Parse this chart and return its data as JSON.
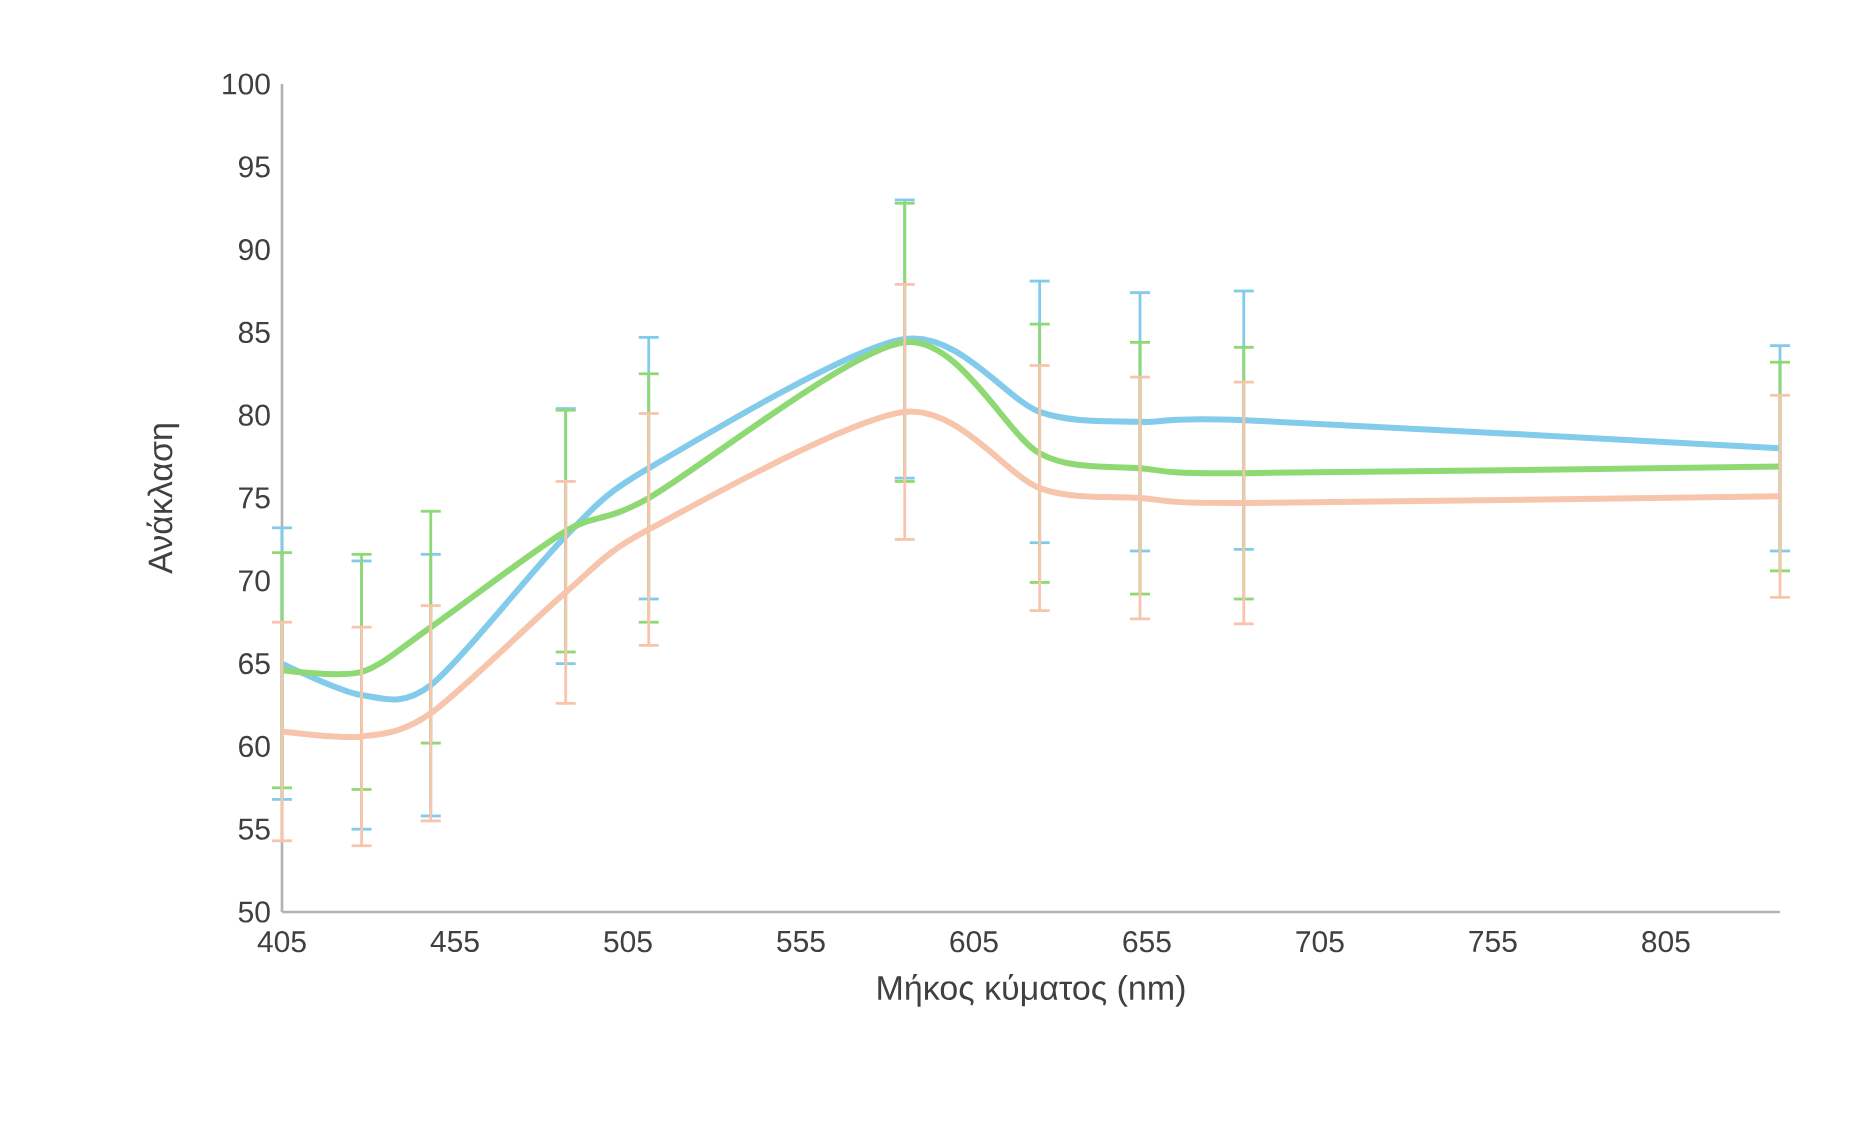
{
  "chart_data": {
    "type": "line",
    "xlabel": "Μήκος κύματος (nm)",
    "ylabel": "Ανάκλαση",
    "x": [
      405,
      428,
      448,
      487,
      511,
      585,
      624,
      653,
      683,
      838
    ],
    "series": [
      {
        "color": "#83cbeb",
        "values": [
          65.0,
          63.1,
          63.7,
          72.7,
          76.8,
          84.6,
          80.2,
          79.6,
          79.7,
          78.0
        ],
        "errors": [
          8.2,
          8.1,
          7.9,
          7.7,
          7.9,
          8.4,
          7.9,
          7.8,
          7.8,
          6.2
        ]
      },
      {
        "color": "#8ed973",
        "values": [
          64.6,
          64.5,
          67.2,
          73.0,
          75.0,
          84.4,
          77.7,
          76.8,
          76.5,
          76.9
        ],
        "errors": [
          7.1,
          7.1,
          7.0,
          7.3,
          7.5,
          8.4,
          7.8,
          7.6,
          7.6,
          6.3
        ]
      },
      {
        "color": "#f6c5ac",
        "values": [
          60.9,
          60.6,
          62.0,
          69.3,
          73.1,
          80.2,
          75.6,
          75.0,
          74.7,
          75.1
        ],
        "errors": [
          6.6,
          6.6,
          6.5,
          6.7,
          7.0,
          7.7,
          7.4,
          7.3,
          7.3,
          6.1
        ]
      }
    ],
    "xlim": [
      405,
      838
    ],
    "xticks": [
      405,
      455,
      505,
      555,
      605,
      655,
      705,
      755,
      805
    ],
    "ylim": [
      50,
      100
    ],
    "yticks": [
      50,
      55,
      60,
      65,
      70,
      75,
      80,
      85,
      90,
      95,
      100
    ],
    "grid": false,
    "marker": "none",
    "line_style": "solid"
  }
}
